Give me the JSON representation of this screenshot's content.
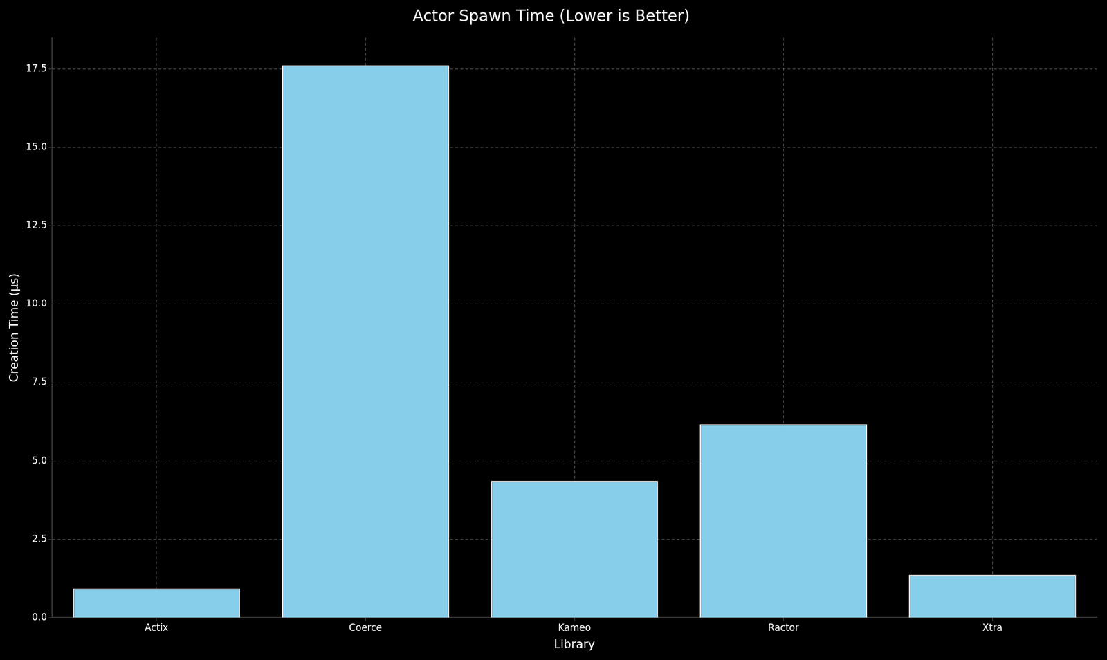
{
  "chart_data": {
    "type": "bar",
    "title": "Actor Spawn Time (Lower is Better)",
    "x_label": "Library",
    "y_label": "Creation Time (µs)",
    "categories": [
      "Actix",
      "Coerce",
      "Kameo",
      "Ractor",
      "Xtra"
    ],
    "values": [
      0.93,
      17.62,
      4.37,
      6.17,
      1.37
    ],
    "color": "#87ceeb",
    "ylim": [
      0,
      18.5
    ],
    "yticks": [
      {
        "value": 0,
        "label": "0.0"
      },
      2.5,
      {
        "value": 5,
        "label": "5.0"
      },
      7.5,
      {
        "value": 10,
        "label": "10.0"
      },
      12.5,
      {
        "value": 15,
        "label": "15.0"
      },
      17.5
    ],
    "grid": true
  }
}
